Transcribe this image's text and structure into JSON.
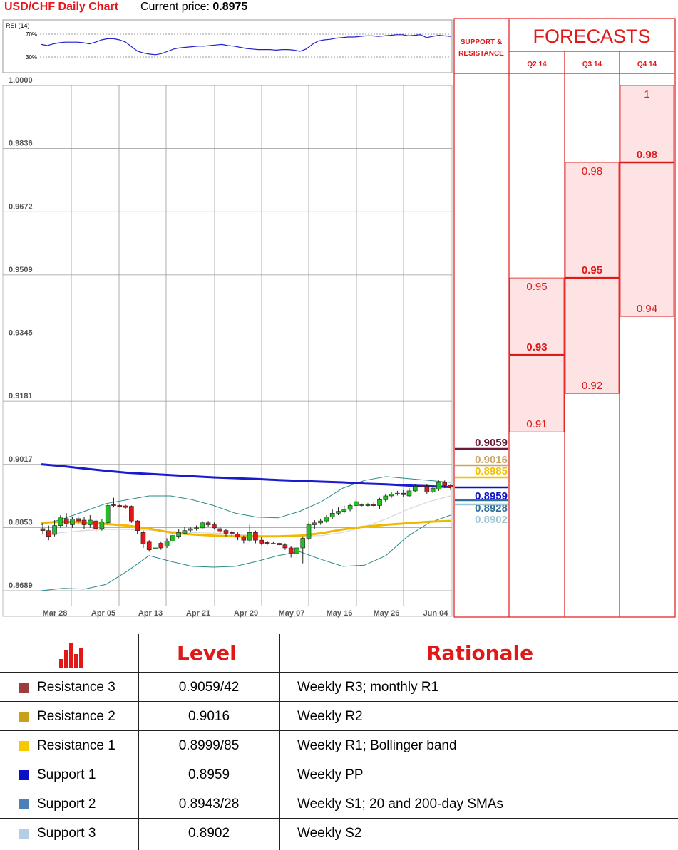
{
  "header": {
    "title": "USD/CHF Daily Chart",
    "price_label": "Current price: ",
    "price_value": "0.8975"
  },
  "rsi": {
    "label": "RSI (14)",
    "levels": [
      "70%",
      "30%"
    ],
    "values": [
      52,
      50,
      53,
      55,
      56,
      56,
      56,
      55,
      53,
      56,
      60,
      62,
      62,
      60,
      56,
      48,
      40,
      37,
      35,
      34,
      36,
      40,
      44,
      46,
      47,
      48,
      49,
      49,
      50,
      51,
      52,
      50,
      49,
      47,
      45,
      44,
      43,
      43,
      43,
      42,
      43,
      43,
      42,
      40,
      44,
      52,
      58,
      60,
      61,
      63,
      64,
      65,
      65,
      66,
      67,
      67,
      66,
      67,
      68,
      69,
      69,
      67,
      68,
      69,
      64,
      66,
      68,
      67,
      66
    ]
  },
  "chart_data": {
    "type": "candlestick",
    "title": "USD/CHF Daily Chart",
    "y_ticks": [
      "1.0000",
      "0.9836",
      "0.9672",
      "0.9509",
      "0.9345",
      "0.9181",
      "0.9017",
      "0.8853",
      "0.8689"
    ],
    "ylim": [
      0.8689,
      1.0
    ],
    "x_ticks": [
      "Mar 28",
      "Apr 05",
      "Apr 13",
      "Apr 21",
      "Apr 29",
      "May 07",
      "May 16",
      "May 26",
      "Jun 04"
    ],
    "candles": [
      [
        0.885,
        0.8845,
        0.8865,
        0.8835
      ],
      [
        0.8845,
        0.883,
        0.8858,
        0.882
      ],
      [
        0.8835,
        0.8858,
        0.8872,
        0.883
      ],
      [
        0.8858,
        0.8878,
        0.8885,
        0.8852
      ],
      [
        0.8876,
        0.8862,
        0.889,
        0.8855
      ],
      [
        0.886,
        0.8875,
        0.888,
        0.8852
      ],
      [
        0.8876,
        0.887,
        0.8882,
        0.886
      ],
      [
        0.8872,
        0.886,
        0.888,
        0.8848
      ],
      [
        0.886,
        0.8872,
        0.8885,
        0.8852
      ],
      [
        0.887,
        0.885,
        0.8876,
        0.8842
      ],
      [
        0.885,
        0.8868,
        0.8875,
        0.8845
      ],
      [
        0.8865,
        0.891,
        0.8915,
        0.886
      ],
      [
        0.8912,
        0.891,
        0.893,
        0.8905
      ],
      [
        0.891,
        0.8909,
        0.8912,
        0.8905
      ],
      [
        0.8909,
        0.8905,
        0.8912,
        0.89
      ],
      [
        0.8908,
        0.887,
        0.891,
        0.8865
      ],
      [
        0.887,
        0.8845,
        0.8872,
        0.8835
      ],
      [
        0.884,
        0.881,
        0.8845,
        0.88
      ],
      [
        0.8815,
        0.8795,
        0.882,
        0.879
      ],
      [
        0.88,
        0.88,
        0.8806,
        0.8788
      ],
      [
        0.8812,
        0.88,
        0.8815,
        0.8795
      ],
      [
        0.8805,
        0.8818,
        0.8825,
        0.88
      ],
      [
        0.8818,
        0.8832,
        0.884,
        0.8812
      ],
      [
        0.883,
        0.884,
        0.885,
        0.8825
      ],
      [
        0.8838,
        0.8845,
        0.8855,
        0.8835
      ],
      [
        0.8846,
        0.885,
        0.8855,
        0.884
      ],
      [
        0.885,
        0.8852,
        0.8858,
        0.8845
      ],
      [
        0.8852,
        0.8865,
        0.887,
        0.8848
      ],
      [
        0.8865,
        0.886,
        0.887,
        0.8855
      ],
      [
        0.886,
        0.8852,
        0.8866,
        0.8848
      ],
      [
        0.885,
        0.8844,
        0.8855,
        0.8835
      ],
      [
        0.8845,
        0.8838,
        0.885,
        0.883
      ],
      [
        0.884,
        0.8836,
        0.8845,
        0.883
      ],
      [
        0.8836,
        0.8828,
        0.884,
        0.882
      ],
      [
        0.8828,
        0.882,
        0.8832,
        0.8812
      ],
      [
        0.882,
        0.884,
        0.886,
        0.8815
      ],
      [
        0.884,
        0.882,
        0.8845,
        0.8812
      ],
      [
        0.882,
        0.8812,
        0.8828,
        0.8808
      ],
      [
        0.8814,
        0.8812,
        0.8818,
        0.8808
      ],
      [
        0.8812,
        0.8812,
        0.8815,
        0.881
      ],
      [
        0.8812,
        0.8808,
        0.8815,
        0.8805
      ],
      [
        0.8808,
        0.88,
        0.8812,
        0.8795
      ],
      [
        0.88,
        0.8785,
        0.8805,
        0.8775
      ],
      [
        0.8785,
        0.88,
        0.881,
        0.877
      ],
      [
        0.88,
        0.8825,
        0.883,
        0.876
      ],
      [
        0.8825,
        0.886,
        0.8865,
        0.882
      ],
      [
        0.886,
        0.8865,
        0.8872,
        0.885
      ],
      [
        0.8865,
        0.887,
        0.8876,
        0.886
      ],
      [
        0.887,
        0.888,
        0.8885,
        0.8865
      ],
      [
        0.888,
        0.889,
        0.89,
        0.8875
      ],
      [
        0.889,
        0.8895,
        0.8905,
        0.8885
      ],
      [
        0.8895,
        0.89,
        0.891,
        0.889
      ],
      [
        0.89,
        0.891,
        0.8915,
        0.8895
      ],
      [
        0.891,
        0.892,
        0.8925,
        0.8905
      ],
      [
        0.8912,
        0.8912,
        0.8915,
        0.8908
      ],
      [
        0.8912,
        0.8912,
        0.8916,
        0.8908
      ],
      [
        0.8912,
        0.891,
        0.8918,
        0.8905
      ],
      [
        0.891,
        0.8925,
        0.893,
        0.89
      ],
      [
        0.8925,
        0.8935,
        0.894,
        0.892
      ],
      [
        0.8935,
        0.894,
        0.8945,
        0.893
      ],
      [
        0.894,
        0.8942,
        0.8948,
        0.8936
      ],
      [
        0.8942,
        0.8938,
        0.895,
        0.8932
      ],
      [
        0.8935,
        0.8948,
        0.8955,
        0.8932
      ],
      [
        0.8948,
        0.896,
        0.8965,
        0.8945
      ],
      [
        0.8962,
        0.896,
        0.8965,
        0.8955
      ],
      [
        0.896,
        0.8945,
        0.8965,
        0.894
      ],
      [
        0.8945,
        0.8955,
        0.896,
        0.8942
      ],
      [
        0.8952,
        0.897,
        0.8975,
        0.8948
      ],
      [
        0.897,
        0.8962,
        0.8975,
        0.8955
      ],
      [
        0.8962,
        0.8958,
        0.8966,
        0.895
      ]
    ],
    "sma200": [
      0.9017,
      0.9012,
      0.9006,
      0.9,
      0.8995,
      0.8992,
      0.8989,
      0.8986,
      0.8983,
      0.8981,
      0.8979,
      0.8976,
      0.8974,
      0.8972,
      0.897,
      0.8967,
      0.8965,
      0.8962,
      0.896,
      0.8958
    ],
    "sma_yellow": [
      0.8865,
      0.8868,
      0.8866,
      0.8862,
      0.8858,
      0.885,
      0.884,
      0.8835,
      0.8832,
      0.883,
      0.883,
      0.883,
      0.8832,
      0.8838,
      0.8848,
      0.8855,
      0.886,
      0.8864,
      0.8868,
      0.887
    ],
    "sma_gray": [
      0.8835,
      0.884,
      0.8845,
      0.8848,
      0.8848,
      0.8846,
      0.8843,
      0.884,
      0.8838,
      0.8835,
      0.8832,
      0.883,
      0.883,
      0.8832,
      0.884,
      0.8855,
      0.8875,
      0.89,
      0.892,
      0.8935
    ],
    "boll_upper": [
      0.886,
      0.8875,
      0.8895,
      0.8915,
      0.8925,
      0.8935,
      0.8935,
      0.8925,
      0.891,
      0.889,
      0.888,
      0.8878,
      0.8895,
      0.892,
      0.8955,
      0.8975,
      0.8985,
      0.898,
      0.8975,
      0.897
    ],
    "boll_lower": [
      0.8689,
      0.8695,
      0.8693,
      0.8705,
      0.874,
      0.878,
      0.8765,
      0.8752,
      0.875,
      0.8752,
      0.8765,
      0.878,
      0.879,
      0.877,
      0.8752,
      0.8755,
      0.878,
      0.883,
      0.8865,
      0.8885
    ],
    "levels": [
      {
        "value": "0.9059",
        "color": "#6a1a36"
      },
      {
        "value": "0.9016",
        "color": "#c9a567"
      },
      {
        "value": "0.8985",
        "color": "#f2c100"
      },
      {
        "value": "0.8959",
        "color": "#0a12c8"
      },
      {
        "value": "0.8928",
        "color": "#2f6f98"
      },
      {
        "value": "0.8902",
        "color": "#9cc7d3"
      }
    ]
  },
  "forecast": {
    "support_label_1": "SUPPORT &",
    "support_label_2": "RESISTANCE",
    "title": "FORECASTS",
    "columns": [
      {
        "label": "Q2 14",
        "high": "0.95",
        "mid": "0.93",
        "low": "0.91"
      },
      {
        "label": "Q3 14",
        "high": "0.98",
        "mid": "0.95",
        "low": "0.92"
      },
      {
        "label": "Q4 14",
        "high": "1",
        "mid": "0.98",
        "low": "0.94"
      }
    ]
  },
  "table": {
    "head_level": "Level",
    "head_rationale": "Rationale",
    "rows": [
      {
        "name": "Resistance 3",
        "level": "0.9059/42",
        "rationale": "Weekly R3; monthly R1",
        "color": "#9b3b3b"
      },
      {
        "name": "Resistance 2",
        "level": "0.9016",
        "rationale": "Weekly R2",
        "color": "#c9a01a"
      },
      {
        "name": "Resistance 1",
        "level": "0.8999/85",
        "rationale": "Weekly R1; Bollinger band",
        "color": "#f6c800"
      },
      {
        "name": "Support 1",
        "level": "0.8959",
        "rationale": "Weekly PP",
        "color": "#0a10c8"
      },
      {
        "name": "Support 2",
        "level": "0.8943/28",
        "rationale": "Weekly S1; 20 and 200-day SMAs",
        "color": "#4a82b8"
      },
      {
        "name": "Support 3",
        "level": "0.8902",
        "rationale": "Weekly S2",
        "color": "#b6cde6"
      }
    ]
  },
  "colors": {
    "red": "#e01818",
    "bull": "#22c022",
    "bear": "#e01818"
  }
}
